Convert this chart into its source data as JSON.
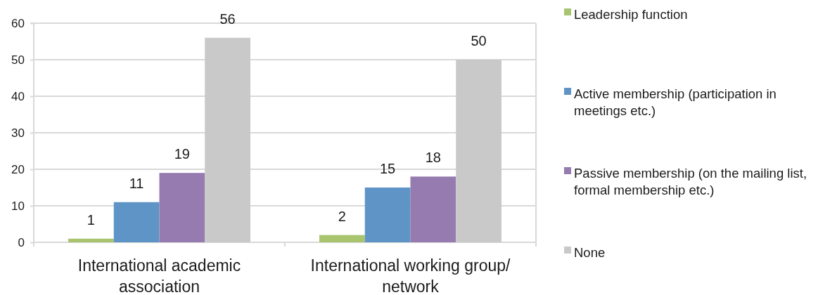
{
  "chart_data": {
    "type": "bar",
    "categories": [
      "International academic association",
      "International working group/ network"
    ],
    "series": [
      {
        "name": "Leadership function",
        "color": "#a9c46f",
        "values": [
          1,
          2
        ]
      },
      {
        "name": "Active membership (participation in meetings etc.)",
        "color": "#5f94c7",
        "values": [
          11,
          15
        ]
      },
      {
        "name": "Passive membership (on the mailing list, formal membership etc.)",
        "color": "#957bb0",
        "values": [
          19,
          18
        ]
      },
      {
        "name": "None",
        "color": "#c9c9c9",
        "values": [
          56,
          50
        ]
      }
    ],
    "ylim": [
      0,
      60
    ],
    "yticks": [
      0,
      10,
      20,
      30,
      40,
      50,
      60
    ],
    "grid": "y",
    "legend": "right",
    "data_labels": true
  }
}
